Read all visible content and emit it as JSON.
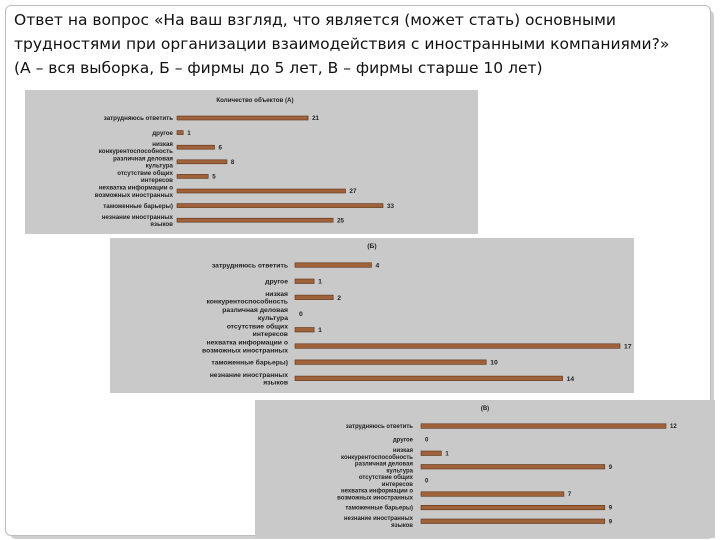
{
  "heading": {
    "line1": "Ответ на вопрос «На ваш взгляд, что является (может стать) основными",
    "line2": "трудностями при организации взаимодействия с иностранными компаниями?»",
    "line3": "(А – вся выборка, Б – фирмы до 5 лет, В – фирмы старше 10 лет)"
  },
  "colors": {
    "bar": "#a0623a",
    "bar_edge": "#5a3418",
    "panel_bg": "#c9c9c9"
  },
  "chart_data": [
    {
      "type": "bar",
      "orientation": "horizontal",
      "title": "Количество объектов (А)",
      "categories": [
        [
          "затрудняюсь ответить"
        ],
        [
          "другое"
        ],
        [
          "низкая",
          "конкурентоспособность"
        ],
        [
          "различная деловая",
          "культура"
        ],
        [
          "отсутствие общих",
          "интересов"
        ],
        [
          "нехватка информации о",
          "возможных иностранных"
        ],
        [
          "таможенные барьеры)"
        ],
        [
          "незнание иностранных",
          "языков"
        ]
      ],
      "values": [
        21,
        1,
        6,
        8,
        5,
        27,
        33,
        25
      ],
      "xlim": [
        0,
        33
      ]
    },
    {
      "type": "bar",
      "orientation": "horizontal",
      "title": "(Б)",
      "categories": [
        [
          "затрудняюсь ответить"
        ],
        [
          "другое"
        ],
        [
          "низкая",
          "конкурентоспособность"
        ],
        [
          "различная деловая",
          "культура"
        ],
        [
          "отсутствие общих",
          "интересов"
        ],
        [
          "нехватка информации о",
          "возможных иностранных"
        ],
        [
          "таможенные барьеры)"
        ],
        [
          "незнание иностранных",
          "языков"
        ]
      ],
      "values": [
        4,
        1,
        2,
        0,
        1,
        17,
        10,
        14
      ],
      "xlim": [
        0,
        17
      ]
    },
    {
      "type": "bar",
      "orientation": "horizontal",
      "title": "(В)",
      "categories": [
        [
          "затрудняюсь ответить"
        ],
        [
          "другое"
        ],
        [
          "низкая",
          "конкурентоспособность"
        ],
        [
          "различная деловая",
          "культура"
        ],
        [
          "отсутствие общих",
          "интересов"
        ],
        [
          "нехватка информации о",
          "возможных иностранных"
        ],
        [
          "таможенные барьеры)"
        ],
        [
          "незнание иностранных",
          "языков"
        ]
      ],
      "values": [
        12,
        0,
        1,
        9,
        0,
        7,
        9,
        9
      ],
      "xlim": [
        0,
        12
      ]
    }
  ]
}
